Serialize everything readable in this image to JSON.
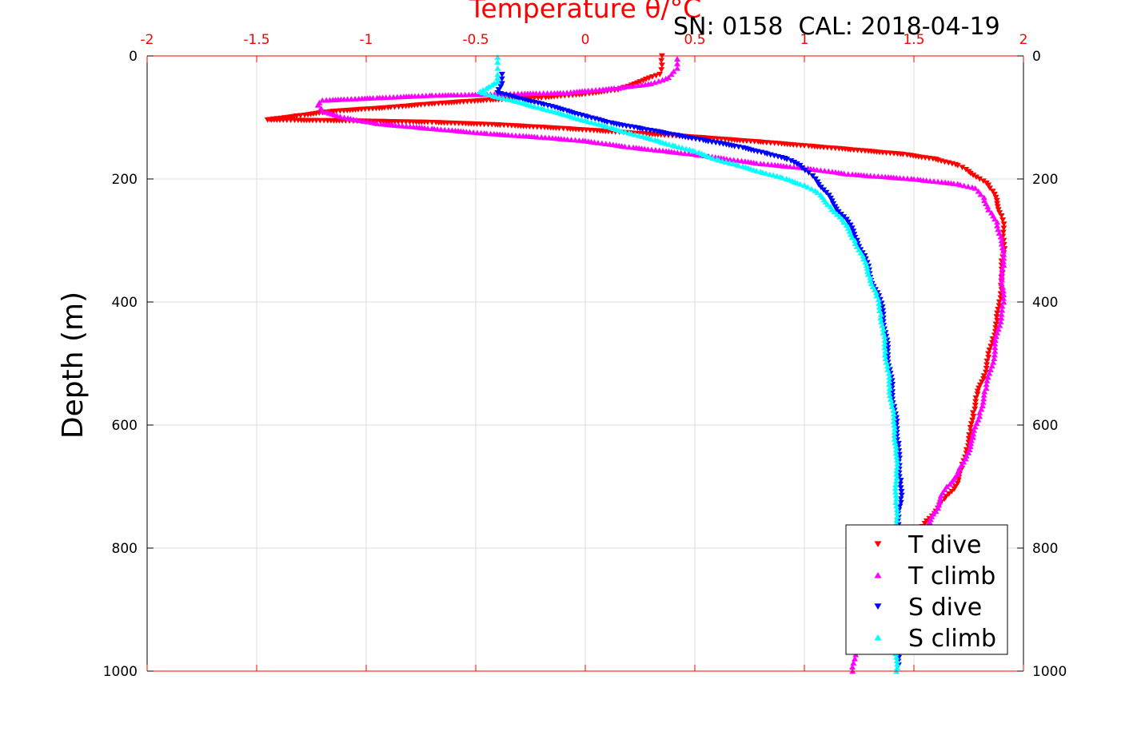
{
  "chart_data": {
    "type": "scatter",
    "title": "Temperature θ/°C",
    "annotation": "SN: 0158  CAL: 2018-04-19",
    "xlabel": "Temperature θ/°C",
    "ylabel": "Depth (m)",
    "xlim": [
      -2,
      2
    ],
    "ylim": [
      0,
      1000
    ],
    "y_reversed": true,
    "grid": true,
    "x_ticks": [
      "-2",
      "-1.5",
      "-1",
      "-0.5",
      "0",
      "0.5",
      "1",
      "1.5",
      "2"
    ],
    "y_ticks": [
      "0",
      "200",
      "400",
      "600",
      "800",
      "1000"
    ],
    "legend_position": "bottom-right",
    "colors": {
      "axis_top": "#ff0000",
      "T_dive": "#ff0000",
      "T_climb": "#ff00ff",
      "S_dive": "#0000ff",
      "S_climb": "#00ffff"
    },
    "series": [
      {
        "name": "T dive",
        "marker": "triangle-down",
        "color": "#ff0000",
        "points": [
          [
            0.35,
            0
          ],
          [
            0.35,
            15
          ],
          [
            0.34,
            30
          ],
          [
            0.25,
            42
          ],
          [
            0.15,
            55
          ],
          [
            0.0,
            62
          ],
          [
            -0.2,
            68
          ],
          [
            -0.45,
            72
          ],
          [
            -0.7,
            78
          ],
          [
            -0.9,
            84
          ],
          [
            -1.15,
            90
          ],
          [
            -1.3,
            97
          ],
          [
            -1.45,
            104
          ],
          [
            -1.0,
            106
          ],
          [
            -0.7,
            108
          ],
          [
            -0.4,
            112
          ],
          [
            -0.1,
            118
          ],
          [
            0.2,
            125
          ],
          [
            0.5,
            132
          ],
          [
            0.8,
            140
          ],
          [
            1.0,
            146
          ],
          [
            1.2,
            152
          ],
          [
            1.45,
            160
          ],
          [
            1.6,
            168
          ],
          [
            1.7,
            178
          ],
          [
            1.75,
            188
          ],
          [
            1.8,
            200
          ],
          [
            1.84,
            210
          ],
          [
            1.86,
            220
          ],
          [
            1.88,
            240
          ],
          [
            1.9,
            260
          ],
          [
            1.91,
            280
          ],
          [
            1.91,
            300
          ],
          [
            1.91,
            320
          ],
          [
            1.9,
            340
          ],
          [
            1.9,
            360
          ],
          [
            1.9,
            380
          ],
          [
            1.89,
            400
          ],
          [
            1.88,
            430
          ],
          [
            1.86,
            460
          ],
          [
            1.84,
            490
          ],
          [
            1.82,
            520
          ],
          [
            1.79,
            550
          ],
          [
            1.77,
            580
          ],
          [
            1.76,
            610
          ],
          [
            1.74,
            640
          ],
          [
            1.72,
            670
          ],
          [
            1.69,
            700
          ],
          [
            1.64,
            720
          ],
          [
            1.6,
            740
          ],
          [
            1.55,
            760
          ],
          [
            1.52,
            780
          ]
        ]
      },
      {
        "name": "T climb",
        "marker": "triangle-up",
        "color": "#ff00ff",
        "points": [
          [
            1.22,
            1000
          ],
          [
            1.23,
            980
          ],
          [
            1.23,
            960
          ],
          [
            1.6,
            740
          ],
          [
            1.62,
            720
          ],
          [
            1.65,
            700
          ],
          [
            1.7,
            680
          ],
          [
            1.74,
            650
          ],
          [
            1.77,
            620
          ],
          [
            1.8,
            580
          ],
          [
            1.83,
            540
          ],
          [
            1.85,
            510
          ],
          [
            1.87,
            480
          ],
          [
            1.88,
            450
          ],
          [
            1.9,
            420
          ],
          [
            1.91,
            400
          ],
          [
            1.9,
            370
          ],
          [
            1.91,
            340
          ],
          [
            1.9,
            300
          ],
          [
            1.88,
            270
          ],
          [
            1.84,
            250
          ],
          [
            1.82,
            230
          ],
          [
            1.78,
            215
          ],
          [
            1.7,
            208
          ],
          [
            1.5,
            200
          ],
          [
            1.2,
            192
          ],
          [
            1.0,
            182
          ],
          [
            0.8,
            175
          ],
          [
            0.5,
            160
          ],
          [
            0.2,
            148
          ],
          [
            0.0,
            138
          ],
          [
            -0.2,
            132
          ],
          [
            -0.45,
            126
          ],
          [
            -0.7,
            118
          ],
          [
            -0.95,
            110
          ],
          [
            -1.1,
            100
          ],
          [
            -1.2,
            90
          ],
          [
            -1.22,
            80
          ],
          [
            -1.2,
            72
          ],
          [
            -0.95,
            68
          ],
          [
            -0.7,
            64
          ],
          [
            -0.4,
            62
          ],
          [
            -0.1,
            60
          ],
          [
            0.15,
            52
          ],
          [
            0.3,
            45
          ],
          [
            0.38,
            35
          ],
          [
            0.42,
            20
          ],
          [
            0.42,
            5
          ]
        ]
      },
      {
        "name": "S dive",
        "marker": "triangle-down",
        "color": "#0000ff",
        "points": [
          [
            -0.38,
            30
          ],
          [
            -0.38,
            45
          ],
          [
            -0.4,
            60
          ],
          [
            -0.3,
            70
          ],
          [
            -0.2,
            78
          ],
          [
            -0.1,
            88
          ],
          [
            0.0,
            98
          ],
          [
            0.1,
            108
          ],
          [
            0.25,
            118
          ],
          [
            0.4,
            128
          ],
          [
            0.55,
            138
          ],
          [
            0.7,
            148
          ],
          [
            0.82,
            158
          ],
          [
            0.92,
            168
          ],
          [
            0.98,
            178
          ],
          [
            1.02,
            190
          ],
          [
            1.06,
            205
          ],
          [
            1.1,
            222
          ],
          [
            1.14,
            245
          ],
          [
            1.2,
            270
          ],
          [
            1.24,
            300
          ],
          [
            1.28,
            330
          ],
          [
            1.3,
            360
          ],
          [
            1.34,
            390
          ],
          [
            1.36,
            420
          ],
          [
            1.37,
            450
          ],
          [
            1.38,
            480
          ],
          [
            1.39,
            510
          ],
          [
            1.4,
            540
          ],
          [
            1.41,
            570
          ],
          [
            1.42,
            600
          ],
          [
            1.43,
            630
          ],
          [
            1.43,
            660
          ],
          [
            1.44,
            690
          ],
          [
            1.44,
            720
          ],
          [
            1.43,
            750
          ],
          [
            1.43,
            780
          ],
          [
            1.43,
            810
          ],
          [
            1.43,
            840
          ],
          [
            1.43,
            870
          ],
          [
            1.43,
            900
          ],
          [
            1.43,
            930
          ],
          [
            1.43,
            960
          ],
          [
            1.43,
            990
          ]
        ]
      },
      {
        "name": "S climb",
        "marker": "triangle-up",
        "color": "#00ffff",
        "points": [
          [
            1.42,
            1000
          ],
          [
            1.42,
            960
          ],
          [
            1.42,
            920
          ],
          [
            1.42,
            880
          ],
          [
            1.42,
            840
          ],
          [
            1.42,
            800
          ],
          [
            1.42,
            760
          ],
          [
            1.42,
            720
          ],
          [
            1.42,
            680
          ],
          [
            1.42,
            640
          ],
          [
            1.41,
            600
          ],
          [
            1.4,
            570
          ],
          [
            1.39,
            540
          ],
          [
            1.38,
            510
          ],
          [
            1.37,
            480
          ],
          [
            1.36,
            450
          ],
          [
            1.35,
            420
          ],
          [
            1.33,
            390
          ],
          [
            1.3,
            360
          ],
          [
            1.27,
            330
          ],
          [
            1.23,
            300
          ],
          [
            1.18,
            270
          ],
          [
            1.12,
            245
          ],
          [
            1.06,
            222
          ],
          [
            1.0,
            210
          ],
          [
            0.9,
            198
          ],
          [
            0.8,
            188
          ],
          [
            0.7,
            178
          ],
          [
            0.6,
            168
          ],
          [
            0.5,
            155
          ],
          [
            0.4,
            145
          ],
          [
            0.3,
            135
          ],
          [
            0.2,
            125
          ],
          [
            0.1,
            115
          ],
          [
            0.0,
            105
          ],
          [
            -0.1,
            95
          ],
          [
            -0.2,
            85
          ],
          [
            -0.3,
            75
          ],
          [
            -0.42,
            65
          ],
          [
            -0.48,
            58
          ],
          [
            -0.44,
            50
          ],
          [
            -0.4,
            42
          ],
          [
            -0.4,
            30
          ],
          [
            -0.4,
            20
          ],
          [
            -0.4,
            10
          ],
          [
            -0.4,
            2
          ]
        ]
      }
    ]
  }
}
